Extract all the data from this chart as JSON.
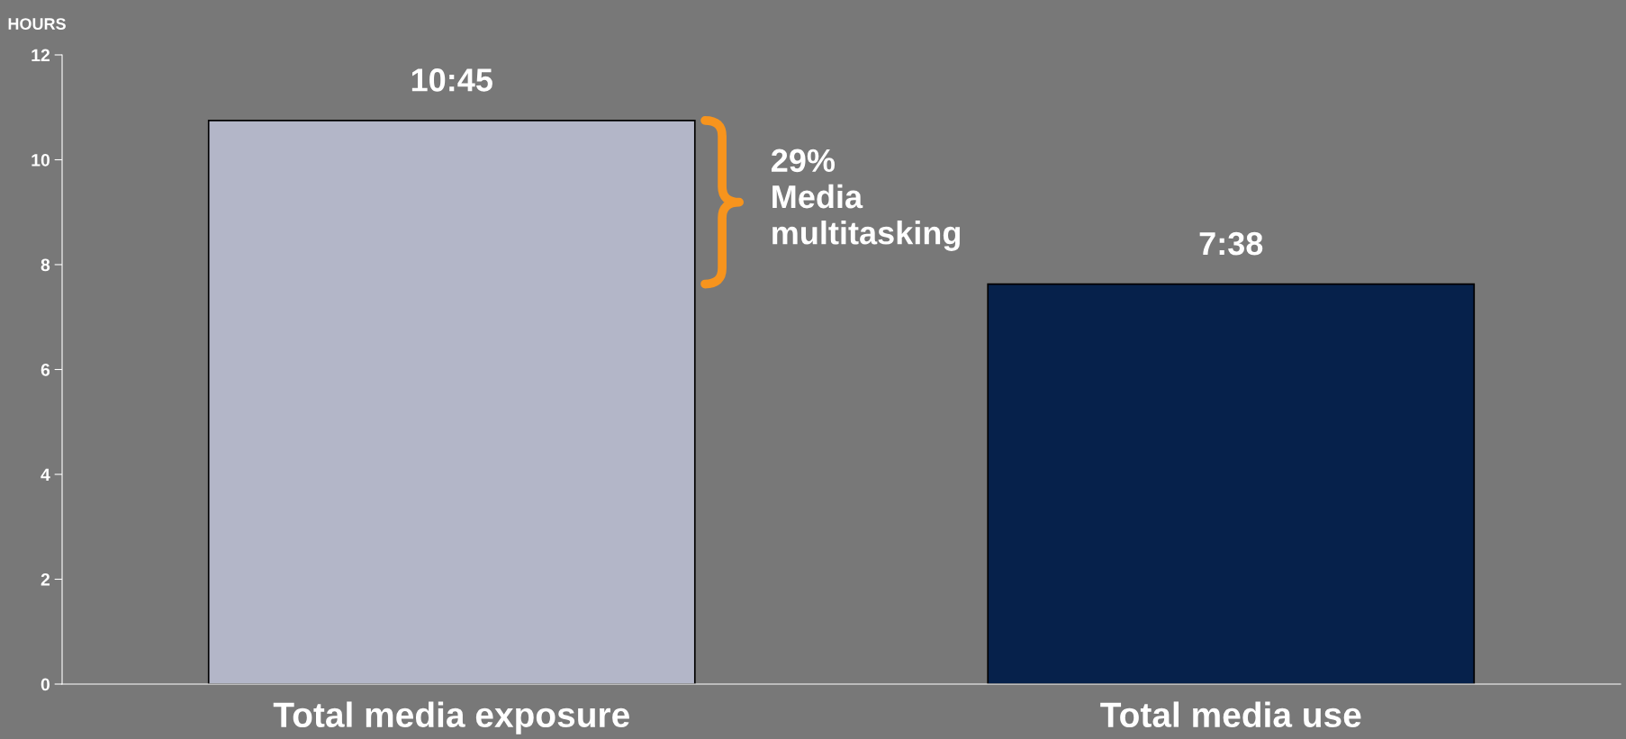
{
  "chart_data": {
    "type": "bar",
    "ylabel": "HOURS",
    "categories": [
      "Total media exposure",
      "Total media use"
    ],
    "values": [
      10.75,
      7.63
    ],
    "colors": [
      "#b3b6c8",
      "#06214b"
    ],
    "value_labels": [
      "10:45",
      "7:38"
    ],
    "ylim": [
      0,
      12
    ],
    "yticks": [
      0,
      2,
      4,
      6,
      8,
      10,
      12
    ],
    "grid": false,
    "legend": false,
    "annotations": [
      "29%\nMedia\nmultitasking"
    ]
  }
}
